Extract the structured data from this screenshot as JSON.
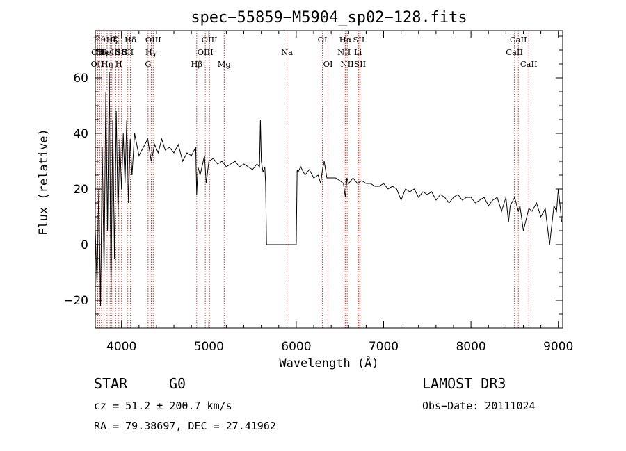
{
  "chart_data": {
    "type": "line",
    "title": "spec−55859−M5904_sp02−128.fits",
    "xlabel": "Wavelength (Å)",
    "ylabel": "Flux (relative)",
    "xlim": [
      3700,
      9050
    ],
    "ylim": [
      -30,
      77
    ],
    "x_ticks": [
      4000,
      5000,
      6000,
      7000,
      8000,
      9000
    ],
    "y_ticks": [
      -20,
      0,
      20,
      40,
      60
    ],
    "y_tick_labels": [
      "−20",
      "0",
      "20",
      "40",
      "60"
    ],
    "series": [
      {
        "name": "flux",
        "x": [
          3700,
          3720,
          3740,
          3760,
          3780,
          3800,
          3820,
          3840,
          3860,
          3880,
          3900,
          3920,
          3940,
          3960,
          3980,
          4000,
          4020,
          4040,
          4060,
          4080,
          4100,
          4120,
          4150,
          4200,
          4250,
          4300,
          4340,
          4380,
          4420,
          4460,
          4500,
          4550,
          4600,
          4650,
          4700,
          4750,
          4800,
          4850,
          4861,
          4875,
          4900,
          4950,
          4970,
          5000,
          5050,
          5100,
          5150,
          5200,
          5250,
          5300,
          5350,
          5400,
          5450,
          5500,
          5550,
          5580,
          5590,
          5600,
          5620,
          5640,
          5650,
          5660,
          6000,
          6010,
          6020,
          6050,
          6100,
          6150,
          6200,
          6250,
          6280,
          6300,
          6320,
          6350,
          6400,
          6450,
          6500,
          6540,
          6563,
          6580,
          6600,
          6650,
          6700,
          6750,
          6800,
          6850,
          6900,
          6950,
          7000,
          7050,
          7100,
          7150,
          7200,
          7250,
          7300,
          7350,
          7400,
          7450,
          7500,
          7550,
          7600,
          7650,
          7700,
          7750,
          7800,
          7850,
          7900,
          7950,
          8000,
          8050,
          8100,
          8150,
          8200,
          8250,
          8300,
          8350,
          8400,
          8430,
          8450,
          8500,
          8542,
          8560,
          8600,
          8662,
          8700,
          8750,
          8800,
          8850,
          8900,
          8950,
          8980,
          9000,
          9020,
          9040
        ],
        "y": [
          5,
          -15,
          20,
          -22,
          35,
          -10,
          55,
          5,
          62,
          -18,
          45,
          -5,
          48,
          10,
          38,
          20,
          40,
          22,
          45,
          15,
          38,
          25,
          40,
          32,
          35,
          38,
          30,
          36,
          33,
          38,
          34,
          35,
          33,
          36,
          30,
          33,
          32,
          35,
          18,
          28,
          25,
          32,
          22,
          30,
          31,
          29,
          30,
          28,
          29,
          30,
          28,
          29,
          28,
          27,
          29,
          28,
          45,
          30,
          26,
          28,
          22,
          0,
          0,
          27,
          26,
          28,
          25,
          27,
          24,
          25,
          22,
          27,
          30,
          24,
          24,
          24,
          23,
          22,
          17,
          24,
          22,
          24,
          22,
          23,
          22,
          22,
          21,
          21,
          22,
          20,
          21,
          20,
          16,
          20,
          19,
          20,
          17,
          19,
          18,
          19,
          16,
          18,
          17,
          15,
          17,
          18,
          16,
          17,
          17,
          15,
          16,
          17,
          14,
          16,
          17,
          12,
          17,
          8,
          14,
          17,
          12,
          14,
          5,
          13,
          12,
          15,
          10,
          13,
          0,
          14,
          12,
          20,
          14,
          8
        ]
      }
    ],
    "line_markers": [
      {
        "wl": 3722,
        "label": "OII",
        "row": 2
      },
      {
        "wl": 3727,
        "label": "OII",
        "row": 1
      },
      {
        "wl": 3750,
        "label": "Hθ",
        "row": 0
      },
      {
        "wl": 3771,
        "label": "Hη",
        "row": 1
      },
      {
        "wl": 3798,
        "label": "He",
        "row": 1
      },
      {
        "wl": 3835,
        "label": "Hη",
        "row": 2
      },
      {
        "wl": 3869,
        "label": "NeIII",
        "row": 1
      },
      {
        "wl": 3889,
        "label": "Hζ",
        "row": 0
      },
      {
        "wl": 3934,
        "label": "K",
        "row": 0
      },
      {
        "wl": 3969,
        "label": "H",
        "row": 2
      },
      {
        "wl": 4000,
        "label": "SII",
        "row": 1
      },
      {
        "wl": 4072,
        "label": "SII",
        "row": 1
      },
      {
        "wl": 4102,
        "label": "Hδ",
        "row": 0
      },
      {
        "wl": 4304,
        "label": "G",
        "row": 2
      },
      {
        "wl": 4340,
        "label": "Hγ",
        "row": 1
      },
      {
        "wl": 4363,
        "label": "OIII",
        "row": 0
      },
      {
        "wl": 4861,
        "label": "Hβ",
        "row": 2
      },
      {
        "wl": 4959,
        "label": "OIII",
        "row": 1
      },
      {
        "wl": 5007,
        "label": "OIII",
        "row": 0
      },
      {
        "wl": 5175,
        "label": "Mg",
        "row": 2
      },
      {
        "wl": 5894,
        "label": "Na",
        "row": 1
      },
      {
        "wl": 6300,
        "label": "OI",
        "row": 0
      },
      {
        "wl": 6364,
        "label": "OI",
        "row": 2
      },
      {
        "wl": 6548,
        "label": "NII",
        "row": 1
      },
      {
        "wl": 6563,
        "label": "Hα",
        "row": 0
      },
      {
        "wl": 6583,
        "label": "NII",
        "row": 2
      },
      {
        "wl": 6707,
        "label": "Li",
        "row": 1
      },
      {
        "wl": 6716,
        "label": "SII",
        "row": 0
      },
      {
        "wl": 6731,
        "label": "SII",
        "row": 2
      },
      {
        "wl": 8498,
        "label": "CaII",
        "row": 1
      },
      {
        "wl": 8542,
        "label": "CaII",
        "row": 0
      },
      {
        "wl": 8662,
        "label": "CaII",
        "row": 2
      }
    ],
    "colors": {
      "axis": "#000000",
      "data": "#000000",
      "marker": "#c0392b"
    }
  },
  "info": {
    "object_class": "STAR",
    "subclass": "G0",
    "survey": "LAMOST DR3",
    "cz": "cz = 51.2 ± 200.7 km/s",
    "obs_date": "Obs−Date: 20111024",
    "radec": "RA =  79.38697, DEC =  27.41962"
  }
}
